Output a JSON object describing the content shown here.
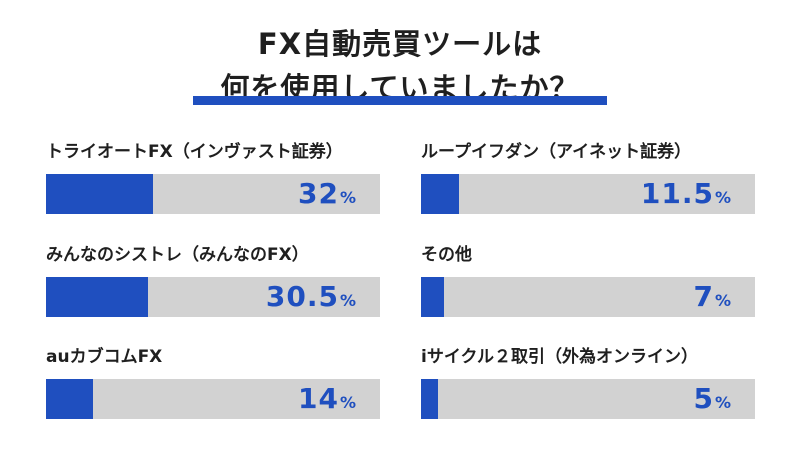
{
  "chart_data": {
    "type": "bar",
    "title_line1": "FX自動売買ツールは",
    "title_line2": "何を使用していましたか？",
    "unit": "%",
    "xlim": [
      0,
      100
    ],
    "categories": [
      "トライオートFX（インヴァスト証券）",
      "ループイフダン（アイネット証券）",
      "みんなのシストレ（みんなのFX）",
      "その他",
      "auカブコムFX",
      "iサイクル２取引（外為オンライン）"
    ],
    "values": [
      32,
      11.5,
      30.5,
      7,
      14,
      5
    ],
    "value_labels": [
      "32",
      "11.5",
      "30.5",
      "7",
      "14",
      "5"
    ],
    "colors": {
      "bar": "#1f4fbf",
      "track": "#d2d2d2",
      "accent": "#1f4fbf"
    }
  }
}
